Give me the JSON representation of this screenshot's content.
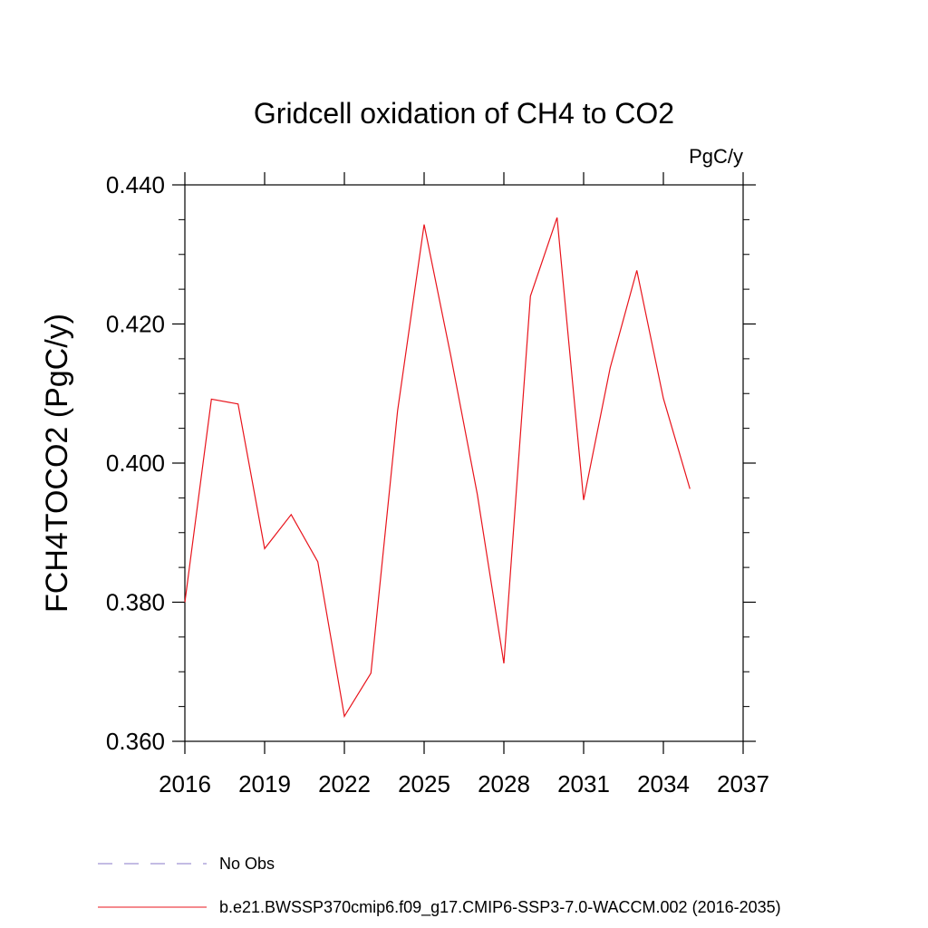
{
  "chart_data": {
    "type": "line",
    "title": "Gridcell oxidation of CH4 to CO2",
    "units_label": "PgC/y",
    "xlabel": "",
    "ylabel": "FCH4TOCO2  (PgC/y)",
    "xlim": [
      2016,
      2037
    ],
    "ylim": [
      0.36,
      0.44
    ],
    "x_ticks": [
      2016,
      2019,
      2022,
      2025,
      2028,
      2031,
      2034,
      2037
    ],
    "x_tick_labels": [
      "2016",
      "2019",
      "2022",
      "2025",
      "2028",
      "2031",
      "2034",
      "2037"
    ],
    "y_ticks": [
      0.36,
      0.38,
      0.4,
      0.42,
      0.44
    ],
    "y_tick_labels": [
      "0.360",
      "0.380",
      "0.400",
      "0.420",
      "0.440"
    ],
    "grid": false,
    "legend_position": "bottom",
    "series": [
      {
        "name": "b.e21.BWSSP370cmip6.f09_g17.CMIP6-SSP3-7.0-WACCM.002 (2016-2035)",
        "color": "#e8141c",
        "style": "solid",
        "x": [
          2016,
          2017,
          2018,
          2019,
          2020,
          2021,
          2022,
          2023,
          2024,
          2025,
          2026,
          2027,
          2028,
          2029,
          2030,
          2031,
          2032,
          2033,
          2034,
          2035
        ],
        "values": [
          0.38,
          0.4092,
          0.4085,
          0.3877,
          0.3926,
          0.3858,
          0.3636,
          0.3698,
          0.4075,
          0.4343,
          0.4155,
          0.3955,
          0.3712,
          0.424,
          0.4353,
          0.3947,
          0.4137,
          0.4277,
          0.4093,
          0.3963
        ]
      }
    ],
    "legend": [
      {
        "label": "No Obs",
        "color": "#8878c8",
        "style": "dashed"
      },
      {
        "label": "b.e21.BWSSP370cmip6.f09_g17.CMIP6-SSP3-7.0-WACCM.002 (2016-2035)",
        "color": "#e8141c",
        "style": "solid"
      }
    ]
  }
}
